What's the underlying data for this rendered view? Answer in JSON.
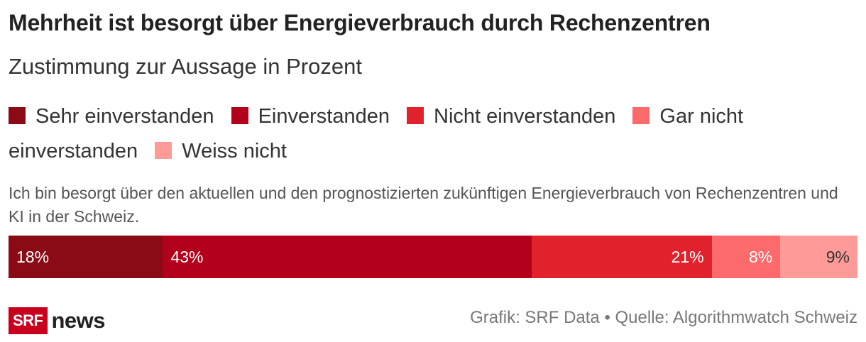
{
  "title": "Mehrheit ist besorgt über Energieverbrauch durch Rechenzentren",
  "subtitle": "Zustimmung zur Aussage in Prozent",
  "question": "Ich bin besorgt über den aktuellen und den prognostizierten zukünftigen Energieverbrauch von Rechenzentren und KI in der Schweiz.",
  "footer": {
    "logo_srf": "SRF",
    "logo_news": "news",
    "source": "Grafik: SRF Data • Quelle: Algorithmwatch Schweiz"
  },
  "chart_data": {
    "type": "bar",
    "stacked": true,
    "orientation": "horizontal",
    "categories": [
      "Ich bin besorgt über den aktuellen und den prognostizierten zukünftigen Energieverbrauch von Rechenzentren und KI in der Schweiz."
    ],
    "series": [
      {
        "name": "Sehr einverstanden",
        "values": [
          18
        ],
        "label": "18%",
        "color": "#8a0a16",
        "label_align": "left",
        "label_color": "#ffffff"
      },
      {
        "name": "Einverstanden",
        "values": [
          43
        ],
        "label": "43%",
        "color": "#b3001b",
        "label_align": "left",
        "label_color": "#ffffff"
      },
      {
        "name": "Nicht einverstanden",
        "values": [
          21
        ],
        "label": "21%",
        "color": "#e1222d",
        "label_align": "right",
        "label_color": "#ffffff"
      },
      {
        "name": "Gar nicht einverstanden",
        "values": [
          8
        ],
        "label": "8%",
        "color": "#fc6a6c",
        "label_align": "right",
        "label_color": "#ffffff"
      },
      {
        "name": "Weiss nicht",
        "values": [
          9
        ],
        "label": "9%",
        "color": "#fe9a98",
        "label_align": "right",
        "label_color": "#333333"
      }
    ],
    "legend_placement": "top",
    "grid": false
  }
}
